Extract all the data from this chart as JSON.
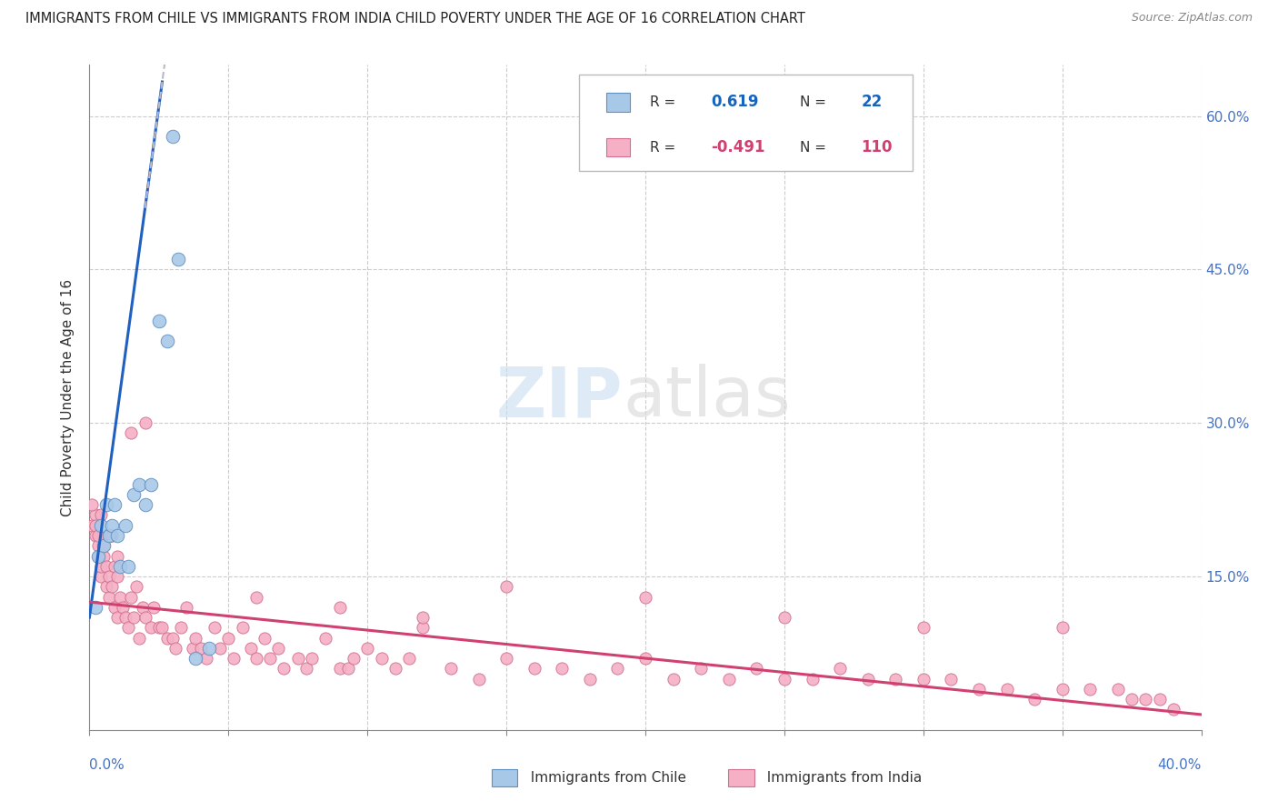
{
  "title": "IMMIGRANTS FROM CHILE VS IMMIGRANTS FROM INDIA CHILD POVERTY UNDER THE AGE OF 16 CORRELATION CHART",
  "source": "Source: ZipAtlas.com",
  "ylabel": "Child Poverty Under the Age of 16",
  "xmin": 0.0,
  "xmax": 0.4,
  "ymin": 0.0,
  "ymax": 0.65,
  "legend_R_chile": "0.619",
  "legend_N_chile": "22",
  "legend_R_india": "-0.491",
  "legend_N_india": "110",
  "chile_color": "#a8c8e8",
  "chile_edge": "#6090c0",
  "india_color": "#f5b0c5",
  "india_edge": "#d07090",
  "trend_chile_color": "#2060c0",
  "trend_india_color": "#d04070",
  "dashed_color": "#b8b8c8",
  "chile_x": [
    0.002,
    0.003,
    0.004,
    0.005,
    0.006,
    0.007,
    0.008,
    0.009,
    0.01,
    0.011,
    0.013,
    0.014,
    0.016,
    0.018,
    0.02,
    0.022,
    0.025,
    0.028,
    0.03,
    0.032,
    0.038,
    0.043
  ],
  "chile_y": [
    0.12,
    0.17,
    0.2,
    0.18,
    0.22,
    0.19,
    0.2,
    0.22,
    0.19,
    0.16,
    0.2,
    0.16,
    0.23,
    0.24,
    0.22,
    0.24,
    0.4,
    0.38,
    0.58,
    0.46,
    0.07,
    0.08
  ],
  "india_x": [
    0.001,
    0.002,
    0.002,
    0.003,
    0.003,
    0.004,
    0.004,
    0.005,
    0.005,
    0.006,
    0.006,
    0.007,
    0.007,
    0.008,
    0.008,
    0.009,
    0.009,
    0.01,
    0.01,
    0.011,
    0.012,
    0.013,
    0.014,
    0.015,
    0.016,
    0.017,
    0.018,
    0.019,
    0.02,
    0.022,
    0.023,
    0.025,
    0.026,
    0.028,
    0.03,
    0.031,
    0.033,
    0.035,
    0.037,
    0.038,
    0.04,
    0.042,
    0.045,
    0.047,
    0.05,
    0.052,
    0.055,
    0.058,
    0.06,
    0.063,
    0.065,
    0.068,
    0.07,
    0.075,
    0.078,
    0.08,
    0.085,
    0.09,
    0.093,
    0.095,
    0.1,
    0.105,
    0.11,
    0.115,
    0.12,
    0.13,
    0.14,
    0.15,
    0.16,
    0.17,
    0.18,
    0.19,
    0.2,
    0.21,
    0.22,
    0.23,
    0.24,
    0.25,
    0.26,
    0.27,
    0.28,
    0.29,
    0.3,
    0.31,
    0.32,
    0.33,
    0.34,
    0.35,
    0.36,
    0.37,
    0.375,
    0.38,
    0.385,
    0.39,
    0.06,
    0.09,
    0.12,
    0.15,
    0.2,
    0.25,
    0.3,
    0.35,
    0.001,
    0.002,
    0.003,
    0.004,
    0.005,
    0.01,
    0.015,
    0.02
  ],
  "india_y": [
    0.2,
    0.21,
    0.19,
    0.17,
    0.18,
    0.15,
    0.16,
    0.19,
    0.17,
    0.16,
    0.14,
    0.15,
    0.13,
    0.19,
    0.14,
    0.16,
    0.12,
    0.15,
    0.11,
    0.13,
    0.12,
    0.11,
    0.1,
    0.13,
    0.11,
    0.14,
    0.09,
    0.12,
    0.11,
    0.1,
    0.12,
    0.1,
    0.1,
    0.09,
    0.09,
    0.08,
    0.1,
    0.12,
    0.08,
    0.09,
    0.08,
    0.07,
    0.1,
    0.08,
    0.09,
    0.07,
    0.1,
    0.08,
    0.07,
    0.09,
    0.07,
    0.08,
    0.06,
    0.07,
    0.06,
    0.07,
    0.09,
    0.06,
    0.06,
    0.07,
    0.08,
    0.07,
    0.06,
    0.07,
    0.1,
    0.06,
    0.05,
    0.07,
    0.06,
    0.06,
    0.05,
    0.06,
    0.07,
    0.05,
    0.06,
    0.05,
    0.06,
    0.05,
    0.05,
    0.06,
    0.05,
    0.05,
    0.05,
    0.05,
    0.04,
    0.04,
    0.03,
    0.04,
    0.04,
    0.04,
    0.03,
    0.03,
    0.03,
    0.02,
    0.13,
    0.12,
    0.11,
    0.14,
    0.13,
    0.11,
    0.1,
    0.1,
    0.22,
    0.2,
    0.19,
    0.21,
    0.18,
    0.17,
    0.29,
    0.3
  ]
}
